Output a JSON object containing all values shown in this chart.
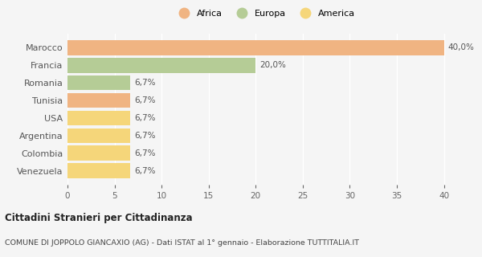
{
  "categories": [
    "Marocco",
    "Francia",
    "Romania",
    "Tunisia",
    "USA",
    "Argentina",
    "Colombia",
    "Venezuela"
  ],
  "values": [
    40.0,
    20.0,
    6.7,
    6.7,
    6.7,
    6.7,
    6.7,
    6.7
  ],
  "colors": [
    "#f0b482",
    "#b5cc96",
    "#b5cc96",
    "#f0b482",
    "#f5d67a",
    "#f5d67a",
    "#f5d67a",
    "#f5d67a"
  ],
  "labels": [
    "40,0%",
    "20,0%",
    "6,7%",
    "6,7%",
    "6,7%",
    "6,7%",
    "6,7%",
    "6,7%"
  ],
  "legend": [
    {
      "label": "Africa",
      "color": "#f0b482"
    },
    {
      "label": "Europa",
      "color": "#b5cc96"
    },
    {
      "label": "America",
      "color": "#f5d67a"
    }
  ],
  "xlim": [
    0,
    42
  ],
  "xticks": [
    0,
    5,
    10,
    15,
    20,
    25,
    30,
    35,
    40
  ],
  "title": "Cittadini Stranieri per Cittadinanza",
  "subtitle": "COMUNE DI JOPPOLO GIANCAXIO (AG) - Dati ISTAT al 1° gennaio - Elaborazione TUTTITALIA.IT",
  "background_color": "#f5f5f5",
  "grid_color": "#ffffff"
}
